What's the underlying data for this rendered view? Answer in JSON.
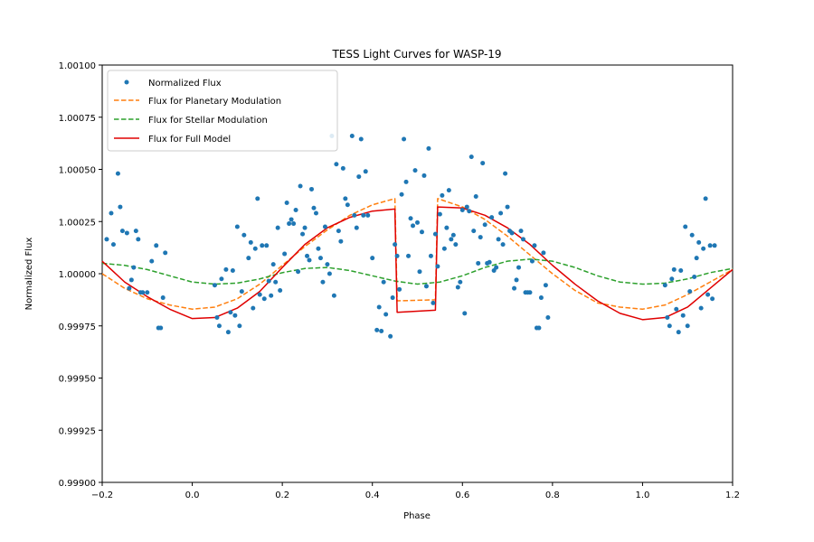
{
  "colors": {
    "flux_points": "#1f77b4",
    "planetary": "#ff7f0e",
    "stellar": "#2ca02c",
    "full_model": "#e00000"
  },
  "chart_data": {
    "type": "scatter",
    "title": "TESS Light Curves for WASP-19",
    "xlabel": "Phase",
    "ylabel": "Normalized Flux",
    "xlim": [
      -0.2,
      1.2
    ],
    "ylim": [
      0.999,
      1.001
    ],
    "xticks": [
      "−0.2",
      "0.0",
      "0.2",
      "0.4",
      "0.6",
      "0.8",
      "1.0",
      "1.2"
    ],
    "yticks": [
      "0.99900",
      "0.99925",
      "0.99950",
      "0.99975",
      "1.00000",
      "1.00025",
      "1.00050",
      "1.00075",
      "1.00100"
    ],
    "legend": {
      "placement": "upper-left",
      "entries": [
        "Normalized Flux",
        "Flux for Planetary Modulation",
        "Flux for Stellar Modulation",
        "Flux for Full Model"
      ]
    },
    "scatter": {
      "name": "Normalized Flux",
      "points": [
        [
          -0.19,
          1.000165
        ],
        [
          -0.18,
          1.00029
        ],
        [
          -0.175,
          1.00014
        ],
        [
          -0.165,
          1.00048
        ],
        [
          -0.16,
          1.00032
        ],
        [
          -0.155,
          1.000205
        ],
        [
          -0.145,
          1.000195
        ],
        [
          -0.14,
          0.99993
        ],
        [
          -0.135,
          0.99997
        ],
        [
          -0.13,
          1.00003
        ],
        [
          -0.125,
          1.000205
        ],
        [
          -0.12,
          1.000165
        ],
        [
          -0.115,
          0.99991
        ],
        [
          -0.11,
          0.99991
        ],
        [
          -0.1,
          0.99991
        ],
        [
          -0.09,
          1.00006
        ],
        [
          -0.08,
          1.000135
        ],
        [
          -0.075,
          0.99974
        ],
        [
          -0.07,
          0.99974
        ],
        [
          -0.065,
          0.999885
        ],
        [
          -0.06,
          1.0001
        ],
        [
          0.05,
          0.999945
        ],
        [
          0.055,
          0.99979
        ],
        [
          0.06,
          0.99975
        ],
        [
          0.065,
          0.999975
        ],
        [
          0.075,
          1.00002
        ],
        [
          0.08,
          0.99972
        ],
        [
          0.085,
          0.999815
        ],
        [
          0.09,
          1.000015
        ],
        [
          0.095,
          0.9998
        ],
        [
          0.1,
          1.000225
        ],
        [
          0.105,
          0.99975
        ],
        [
          0.11,
          0.999915
        ],
        [
          0.115,
          1.000185
        ],
        [
          0.125,
          1.000075
        ],
        [
          0.13,
          1.00015
        ],
        [
          0.135,
          0.999835
        ],
        [
          0.14,
          1.00012
        ],
        [
          0.145,
          1.00036
        ],
        [
          0.15,
          0.9999
        ],
        [
          0.155,
          1.000135
        ],
        [
          0.16,
          0.99988
        ],
        [
          0.165,
          1.000135
        ],
        [
          0.17,
          0.999965
        ],
        [
          0.175,
          0.999895
        ],
        [
          0.18,
          1.000045
        ],
        [
          0.185,
          0.99996
        ],
        [
          0.19,
          1.00022
        ],
        [
          0.195,
          0.99992
        ],
        [
          0.205,
          1.000095
        ],
        [
          0.21,
          1.00034
        ],
        [
          0.215,
          1.00024
        ],
        [
          0.22,
          1.00026
        ],
        [
          0.225,
          1.00024
        ],
        [
          0.23,
          1.000305
        ],
        [
          0.235,
          1.00001
        ],
        [
          0.24,
          1.00042
        ],
        [
          0.245,
          1.00019
        ],
        [
          0.25,
          1.00022
        ],
        [
          0.255,
          1.000085
        ],
        [
          0.26,
          1.000065
        ],
        [
          0.265,
          1.000405
        ],
        [
          0.27,
          1.000315
        ],
        [
          0.275,
          1.00029
        ],
        [
          0.28,
          1.00012
        ],
        [
          0.285,
          1.000075
        ],
        [
          0.29,
          0.99996
        ],
        [
          0.295,
          1.000225
        ],
        [
          0.3,
          1.000045
        ],
        [
          0.305,
          1.0
        ],
        [
          0.31,
          1.00066
        ],
        [
          0.315,
          0.999895
        ],
        [
          0.32,
          1.000525
        ],
        [
          0.325,
          1.000205
        ],
        [
          0.33,
          1.000155
        ],
        [
          0.335,
          1.000505
        ],
        [
          0.34,
          1.00036
        ],
        [
          0.345,
          1.00033
        ],
        [
          0.355,
          1.00066
        ],
        [
          0.36,
          1.00028
        ],
        [
          0.365,
          1.00022
        ],
        [
          0.37,
          1.000465
        ],
        [
          0.375,
          1.000645
        ],
        [
          0.38,
          1.00028
        ],
        [
          0.385,
          1.00049
        ],
        [
          0.39,
          1.00028
        ],
        [
          0.4,
          1.000075
        ],
        [
          0.41,
          0.99973
        ],
        [
          0.415,
          0.99984
        ],
        [
          0.42,
          0.999725
        ],
        [
          0.425,
          0.99996
        ],
        [
          0.43,
          0.999805
        ],
        [
          0.44,
          0.9997
        ],
        [
          0.445,
          0.999885
        ],
        [
          0.45,
          1.00014
        ],
        [
          0.455,
          1.000085
        ],
        [
          0.46,
          0.999925
        ],
        [
          0.465,
          1.00038
        ],
        [
          0.47,
          1.000645
        ],
        [
          0.475,
          1.00044
        ],
        [
          0.48,
          1.000085
        ],
        [
          0.485,
          1.000265
        ],
        [
          0.49,
          1.00023
        ],
        [
          0.495,
          1.000495
        ],
        [
          0.5,
          1.000245
        ],
        [
          0.505,
          1.00001
        ],
        [
          0.51,
          1.0002
        ],
        [
          0.515,
          1.00047
        ],
        [
          0.52,
          0.99994
        ],
        [
          0.525,
          1.0006
        ],
        [
          0.53,
          1.000085
        ],
        [
          0.535,
          0.99986
        ],
        [
          0.54,
          1.00019
        ],
        [
          0.545,
          1.000035
        ],
        [
          0.55,
          1.000285
        ],
        [
          0.555,
          1.000375
        ],
        [
          0.56,
          1.00012
        ],
        [
          0.565,
          1.00022
        ],
        [
          0.57,
          1.0004
        ],
        [
          0.575,
          1.000165
        ],
        [
          0.58,
          1.000185
        ],
        [
          0.585,
          1.00014
        ],
        [
          0.59,
          0.999935
        ],
        [
          0.595,
          0.99996
        ],
        [
          0.6,
          1.000305
        ],
        [
          0.605,
          0.99981
        ],
        [
          0.61,
          1.00032
        ],
        [
          0.615,
          1.0003
        ],
        [
          0.62,
          1.00056
        ],
        [
          0.625,
          1.000205
        ],
        [
          0.63,
          1.00037
        ],
        [
          0.635,
          1.00005
        ],
        [
          0.64,
          1.000175
        ],
        [
          0.645,
          1.00053
        ],
        [
          0.65,
          1.000235
        ],
        [
          0.655,
          1.00005
        ],
        [
          0.66,
          1.000055
        ],
        [
          0.665,
          1.00027
        ],
        [
          0.67,
          1.000015
        ],
        [
          0.675,
          1.00003
        ],
        [
          0.68,
          1.000165
        ],
        [
          0.685,
          1.00029
        ],
        [
          0.69,
          1.00014
        ],
        [
          0.695,
          1.00048
        ],
        [
          0.7,
          1.00032
        ],
        [
          0.705,
          1.000205
        ],
        [
          0.71,
          1.000195
        ],
        [
          0.715,
          0.99993
        ],
        [
          0.72,
          0.99997
        ],
        [
          0.725,
          1.00003
        ],
        [
          0.73,
          1.000205
        ],
        [
          0.735,
          1.000165
        ],
        [
          0.74,
          0.99991
        ],
        [
          0.745,
          0.99991
        ],
        [
          0.75,
          0.99991
        ],
        [
          0.755,
          1.00006
        ],
        [
          0.76,
          1.000135
        ],
        [
          0.765,
          0.99974
        ],
        [
          0.77,
          0.99974
        ],
        [
          0.775,
          0.999885
        ],
        [
          0.78,
          1.0001
        ],
        [
          0.785,
          0.999945
        ],
        [
          0.79,
          0.99979
        ],
        [
          1.05,
          0.999945
        ],
        [
          1.055,
          0.99979
        ],
        [
          1.06,
          0.99975
        ],
        [
          1.065,
          0.999975
        ],
        [
          1.07,
          1.00002
        ],
        [
          1.075,
          0.99983
        ],
        [
          1.08,
          0.99972
        ],
        [
          1.085,
          1.000015
        ],
        [
          1.09,
          0.9998
        ],
        [
          1.095,
          1.000225
        ],
        [
          1.1,
          0.99975
        ],
        [
          1.105,
          0.999915
        ],
        [
          1.11,
          1.000185
        ],
        [
          1.115,
          0.999985
        ],
        [
          1.12,
          1.000075
        ],
        [
          1.125,
          1.00015
        ],
        [
          1.13,
          0.999835
        ],
        [
          1.135,
          1.00012
        ],
        [
          1.14,
          1.00036
        ],
        [
          1.145,
          0.9999
        ],
        [
          1.15,
          1.000135
        ],
        [
          1.155,
          0.99988
        ],
        [
          1.16,
          1.000135
        ]
      ]
    },
    "lines": [
      {
        "name": "Flux for Planetary Modulation",
        "style": "dashed",
        "points": [
          [
            -0.2,
            1.0
          ],
          [
            -0.15,
            0.99993
          ],
          [
            -0.1,
            0.99988
          ],
          [
            -0.05,
            0.99985
          ],
          [
            0.0,
            0.99983
          ],
          [
            0.05,
            0.99984
          ],
          [
            0.1,
            0.99988
          ],
          [
            0.15,
            0.99995
          ],
          [
            0.2,
            1.00004
          ],
          [
            0.25,
            1.00013
          ],
          [
            0.3,
            1.00021
          ],
          [
            0.35,
            1.00028
          ],
          [
            0.4,
            1.00033
          ],
          [
            0.45,
            1.00036
          ],
          [
            0.455,
            0.99987
          ],
          [
            0.54,
            0.999875
          ],
          [
            0.545,
            1.00036
          ],
          [
            0.6,
            1.00032
          ],
          [
            0.65,
            1.00026
          ],
          [
            0.7,
            1.00018
          ],
          [
            0.75,
            1.00009
          ],
          [
            0.8,
            1.0
          ],
          [
            0.85,
            0.99992
          ],
          [
            0.9,
            0.99986
          ],
          [
            0.95,
            0.99984
          ],
          [
            1.0,
            0.99983
          ],
          [
            1.05,
            0.99985
          ],
          [
            1.1,
            0.9999
          ],
          [
            1.15,
            0.99996
          ],
          [
            1.2,
            1.00002
          ]
        ]
      },
      {
        "name": "Flux for Stellar Modulation",
        "style": "dashed",
        "points": [
          [
            -0.2,
            1.00005
          ],
          [
            -0.15,
            1.00004
          ],
          [
            -0.1,
            1.00002
          ],
          [
            -0.05,
            0.99999
          ],
          [
            0.0,
            0.99996
          ],
          [
            0.05,
            0.99995
          ],
          [
            0.1,
            0.999955
          ],
          [
            0.15,
            0.999975
          ],
          [
            0.2,
            1.000005
          ],
          [
            0.25,
            1.000025
          ],
          [
            0.3,
            1.00003
          ],
          [
            0.35,
            1.000015
          ],
          [
            0.4,
            0.99999
          ],
          [
            0.45,
            0.999965
          ],
          [
            0.5,
            0.99995
          ],
          [
            0.55,
            0.99996
          ],
          [
            0.6,
            0.99999
          ],
          [
            0.65,
            1.00003
          ],
          [
            0.7,
            1.00006
          ],
          [
            0.75,
            1.00007
          ],
          [
            0.8,
            1.00006
          ],
          [
            0.85,
            1.00003
          ],
          [
            0.9,
            0.99999
          ],
          [
            0.95,
            0.99996
          ],
          [
            1.0,
            0.99995
          ],
          [
            1.05,
            0.999955
          ],
          [
            1.1,
            0.999975
          ],
          [
            1.15,
            1.000005
          ],
          [
            1.2,
            1.000025
          ]
        ]
      },
      {
        "name": "Flux for Full Model",
        "style": "solid",
        "points": [
          [
            -0.2,
            1.00006
          ],
          [
            -0.15,
            0.99996
          ],
          [
            -0.1,
            0.99989
          ],
          [
            -0.05,
            0.99983
          ],
          [
            0.0,
            0.999785
          ],
          [
            0.05,
            0.99979
          ],
          [
            0.1,
            0.999835
          ],
          [
            0.15,
            0.999915
          ],
          [
            0.2,
            1.00003
          ],
          [
            0.25,
            1.00014
          ],
          [
            0.3,
            1.00022
          ],
          [
            0.35,
            1.00027
          ],
          [
            0.4,
            1.0003
          ],
          [
            0.45,
            1.00031
          ],
          [
            0.455,
            0.999815
          ],
          [
            0.54,
            0.999825
          ],
          [
            0.545,
            1.00032
          ],
          [
            0.6,
            1.000315
          ],
          [
            0.65,
            1.00028
          ],
          [
            0.7,
            1.00022
          ],
          [
            0.75,
            1.00014
          ],
          [
            0.8,
            1.00004
          ],
          [
            0.85,
            0.99995
          ],
          [
            0.9,
            0.99987
          ],
          [
            0.95,
            0.99981
          ],
          [
            1.0,
            0.99978
          ],
          [
            1.05,
            0.99979
          ],
          [
            1.1,
            0.99984
          ],
          [
            1.15,
            0.99993
          ],
          [
            1.2,
            1.00002
          ]
        ]
      }
    ]
  }
}
